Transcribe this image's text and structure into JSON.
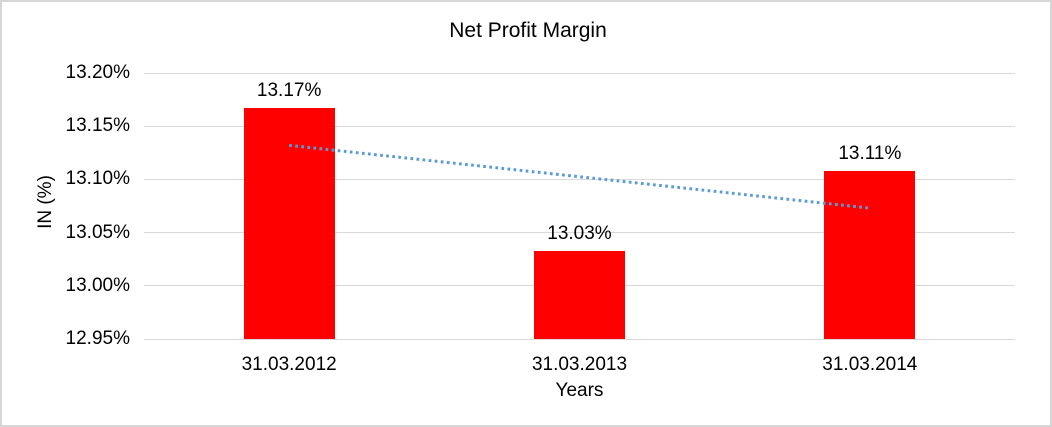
{
  "frame": {
    "background_color": "#FFFFFF",
    "border_color": "#D6D6D6"
  },
  "chart_data": {
    "type": "bar",
    "title": "Net Profit Margin",
    "xlabel": "Years",
    "ylabel": "IN (%)",
    "categories": [
      "31.03.2012",
      "31.03.2013",
      "31.03.2014"
    ],
    "series": [
      {
        "name": "Net Profit Margin",
        "values": [
          13.167,
          13.033,
          13.108
        ],
        "data_labels": [
          "13.17%",
          "13.03%",
          "13.11%"
        ],
        "color": "#FF0000"
      }
    ],
    "ylim": [
      12.95,
      13.2
    ],
    "yticks": [
      12.95,
      13.0,
      13.05,
      13.1,
      13.15,
      13.2
    ],
    "ytick_labels": [
      "12.95%",
      "13.00%",
      "13.05%",
      "13.10%",
      "13.15%",
      "13.20%"
    ],
    "grid": true,
    "gridline_color": "#D9D9D9",
    "legend": "none",
    "trendline": {
      "type": "linear",
      "style": "dotted",
      "color": "#5B9BD5",
      "start_value": 13.132,
      "end_value": 13.073
    }
  }
}
